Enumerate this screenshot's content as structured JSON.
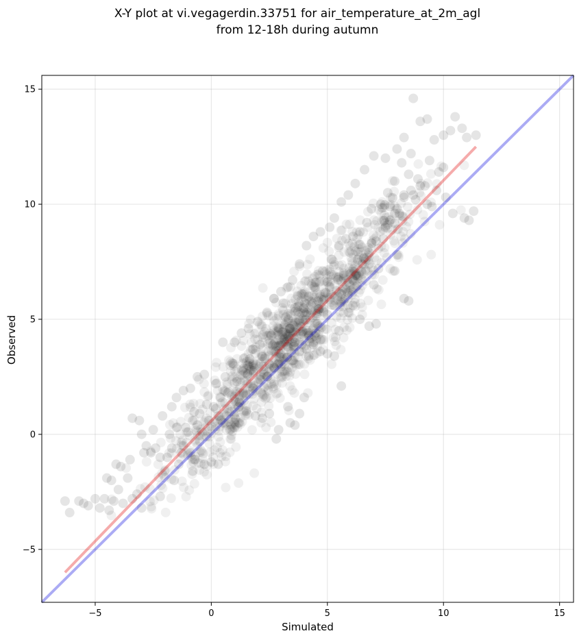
{
  "chart_data": {
    "type": "scatter",
    "title": [
      "X-Y plot at vi.vegagerdin.33751 for air_temperature_at_2m_agl",
      "from 12-18h during autumn"
    ],
    "xlabel": "Simulated",
    "ylabel": "Observed",
    "xlim": [
      -7.3,
      15.6
    ],
    "ylim": [
      -7.3,
      15.6
    ],
    "xticks": [
      -5,
      0,
      5,
      10,
      15
    ],
    "yticks": [
      -5,
      0,
      5,
      10,
      15
    ],
    "xtick_labels": [
      "−5",
      "0",
      "5",
      "10",
      "15"
    ],
    "ytick_labels": [
      "−5",
      "0",
      "5",
      "10",
      "15"
    ],
    "grid": true,
    "point_color": "#000000",
    "point_alpha": 0.1,
    "lines": [
      {
        "kind": "identity",
        "x": [
          -7.3,
          15.6
        ],
        "y": [
          -7.3,
          15.6
        ],
        "color": "#0000dd",
        "alpha": 0.33
      },
      {
        "kind": "fit",
        "x": [
          -6.3,
          11.4
        ],
        "y": [
          -6.0,
          12.5
        ],
        "color": "#e00000",
        "alpha": 0.33
      }
    ],
    "cloud_trend": {
      "slope": 1.045,
      "intercept": 0.6
    },
    "points": [
      [
        -6.3,
        -2.9
      ],
      [
        -6.1,
        -3.4
      ],
      [
        -5.7,
        -2.9
      ],
      [
        -5.5,
        -3.0
      ],
      [
        -5.3,
        -3.1
      ],
      [
        -5.0,
        -2.8
      ],
      [
        -4.8,
        -3.2
      ],
      [
        -4.6,
        -2.8
      ],
      [
        -4.4,
        -3.3
      ],
      [
        -4.2,
        -2.9
      ],
      [
        -4.0,
        -2.4
      ],
      [
        -3.8,
        -3.0
      ],
      [
        -3.6,
        -1.9
      ],
      [
        -3.4,
        -2.8
      ],
      [
        -3.2,
        -2.6
      ],
      [
        -3.0,
        -3.2
      ],
      [
        -4.5,
        -1.9
      ],
      [
        -4.3,
        -2.0
      ],
      [
        -4.1,
        -1.3
      ],
      [
        -3.9,
        -1.4
      ],
      [
        -3.5,
        -1.1
      ],
      [
        -3.4,
        0.7
      ],
      [
        -3.1,
        0.6
      ],
      [
        -3.0,
        0.0
      ],
      [
        -2.8,
        -0.5
      ],
      [
        -2.6,
        -0.8
      ],
      [
        -2.4,
        -0.6
      ],
      [
        -2.2,
        -1.0
      ],
      [
        -2.0,
        -1.6
      ],
      [
        -1.9,
        -1.0
      ],
      [
        -1.8,
        0.0
      ],
      [
        -1.7,
        -0.6
      ],
      [
        -1.6,
        -2.0
      ],
      [
        -1.5,
        0.3
      ],
      [
        -1.4,
        -1.3
      ],
      [
        -1.3,
        -0.8
      ],
      [
        -1.2,
        -0.5
      ],
      [
        -1.1,
        0.3
      ],
      [
        -1.0,
        0.1
      ],
      [
        -0.9,
        -0.8
      ],
      [
        -0.8,
        -1.6
      ],
      [
        -0.7,
        -1.1
      ],
      [
        -0.6,
        0.4
      ],
      [
        -0.5,
        -0.3
      ],
      [
        -0.4,
        0.1
      ],
      [
        -0.3,
        -1.3
      ],
      [
        -0.2,
        -0.1
      ],
      [
        -0.1,
        0.6
      ],
      [
        0.0,
        -1.2
      ],
      [
        0.3,
        -1.3
      ],
      [
        -2.2,
        -2.7
      ],
      [
        -2.9,
        -0.8
      ],
      [
        -2.5,
        0.2
      ],
      [
        -2.1,
        0.8
      ],
      [
        -1.7,
        1.2
      ],
      [
        -1.5,
        1.6
      ],
      [
        -1.2,
        1.9
      ],
      [
        -0.9,
        2.0
      ],
      [
        -0.6,
        2.5
      ],
      [
        -0.3,
        2.6
      ],
      [
        0.2,
        2.2
      ],
      [
        0.6,
        2.5
      ],
      [
        0.5,
        4.0
      ],
      [
        1.0,
        4.0
      ],
      [
        1.3,
        4.4
      ],
      [
        1.6,
        4.6
      ],
      [
        2.0,
        4.9
      ],
      [
        2.4,
        5.3
      ],
      [
        2.7,
        5.9
      ],
      [
        3.0,
        6.2
      ],
      [
        3.3,
        6.4
      ],
      [
        3.1,
        5.7
      ],
      [
        3.5,
        6.7
      ],
      [
        3.8,
        7.4
      ],
      [
        4.1,
        8.2
      ],
      [
        4.4,
        8.6
      ],
      [
        4.7,
        8.8
      ],
      [
        5.1,
        9.0
      ],
      [
        5.3,
        9.4
      ],
      [
        5.6,
        10.1
      ],
      [
        5.9,
        10.4
      ],
      [
        6.2,
        10.9
      ],
      [
        6.6,
        11.5
      ],
      [
        7.0,
        12.1
      ],
      [
        7.5,
        12.0
      ],
      [
        8.0,
        12.4
      ],
      [
        8.3,
        12.9
      ],
      [
        8.7,
        14.6
      ],
      [
        9.0,
        13.6
      ],
      [
        9.3,
        13.7
      ],
      [
        9.6,
        12.8
      ],
      [
        10.0,
        13.0
      ],
      [
        10.3,
        13.2
      ],
      [
        10.5,
        13.8
      ],
      [
        10.8,
        13.3
      ],
      [
        11.0,
        12.9
      ],
      [
        11.4,
        13.0
      ],
      [
        10.9,
        9.4
      ],
      [
        11.1,
        9.3
      ],
      [
        11.3,
        9.7
      ],
      [
        10.4,
        9.6
      ],
      [
        10.1,
        10.3
      ],
      [
        9.7,
        10.6
      ],
      [
        9.5,
        9.9
      ],
      [
        9.3,
        10.0
      ],
      [
        9.0,
        10.8
      ],
      [
        8.8,
        10.2
      ],
      [
        8.5,
        11.3
      ],
      [
        8.3,
        10.4
      ],
      [
        7.9,
        9.6
      ],
      [
        7.7,
        9.9
      ],
      [
        7.4,
        8.5
      ],
      [
        7.2,
        7.2
      ],
      [
        7.0,
        6.5
      ],
      [
        7.9,
        7.1
      ],
      [
        8.0,
        7.8
      ],
      [
        8.3,
        5.9
      ],
      [
        8.5,
        5.8
      ],
      [
        7.1,
        4.8
      ],
      [
        6.8,
        4.7
      ],
      [
        6.4,
        5.0
      ],
      [
        6.1,
        5.6
      ],
      [
        5.9,
        5.3
      ],
      [
        5.5,
        4.5
      ],
      [
        5.6,
        2.1
      ],
      [
        5.3,
        3.4
      ],
      [
        5.0,
        3.5
      ],
      [
        4.7,
        3.6
      ],
      [
        4.4,
        3.9
      ],
      [
        4.2,
        3.4
      ],
      [
        4.0,
        1.6
      ],
      [
        3.8,
        0.9
      ],
      [
        3.6,
        0.4
      ],
      [
        3.4,
        0.5
      ],
      [
        3.3,
        1.2
      ],
      [
        2.9,
        0.2
      ],
      [
        2.8,
        -0.2
      ],
      [
        2.5,
        0.9
      ],
      [
        2.2,
        0.7
      ],
      [
        1.9,
        0.8
      ],
      [
        1.5,
        1.0
      ],
      [
        1.2,
        0.5
      ],
      [
        1.0,
        0.3
      ],
      [
        0.8,
        0.2
      ],
      [
        0.5,
        0.5
      ],
      [
        0.3,
        0.8
      ],
      [
        0.1,
        1.2
      ],
      [
        0.7,
        1.8
      ],
      [
        0.9,
        3.1
      ],
      [
        1.4,
        3.3
      ],
      [
        1.8,
        3.7
      ],
      [
        2.1,
        3.9
      ],
      [
        2.6,
        4.3
      ],
      [
        2.9,
        4.6
      ],
      [
        3.2,
        5.1
      ],
      [
        3.6,
        5.5
      ],
      [
        3.9,
        6.1
      ],
      [
        4.2,
        6.0
      ],
      [
        4.5,
        6.6
      ],
      [
        4.8,
        7.1
      ],
      [
        5.2,
        7.6
      ],
      [
        5.5,
        8.2
      ],
      [
        5.8,
        8.5
      ],
      [
        6.1,
        8.6
      ],
      [
        6.4,
        8.8
      ],
      [
        6.7,
        9.2
      ],
      [
        6.9,
        9.8
      ],
      [
        7.3,
        10.0
      ],
      [
        7.6,
        10.5
      ],
      [
        7.9,
        11.0
      ],
      [
        8.2,
        11.8
      ],
      [
        8.6,
        12.2
      ],
      [
        9.4,
        11.9
      ],
      [
        10.0,
        11.6
      ],
      [
        3.0,
        3.5
      ],
      [
        3.3,
        3.8
      ],
      [
        3.6,
        4.0
      ],
      [
        3.9,
        3.9
      ],
      [
        4.2,
        4.3
      ],
      [
        3.5,
        3.2
      ],
      [
        3.8,
        3.6
      ],
      [
        4.1,
        3.7
      ],
      [
        4.4,
        4.0
      ],
      [
        4.7,
        4.1
      ],
      [
        2.7,
        2.9
      ],
      [
        2.4,
        2.5
      ],
      [
        2.1,
        2.4
      ],
      [
        1.8,
        2.0
      ],
      [
        1.5,
        1.7
      ],
      [
        1.2,
        1.4
      ],
      [
        5.0,
        5.2
      ],
      [
        5.3,
        5.6
      ],
      [
        5.6,
        6.1
      ],
      [
        5.9,
        6.6
      ],
      [
        6.2,
        6.9
      ],
      [
        6.5,
        7.4
      ],
      [
        6.8,
        7.9
      ],
      [
        7.1,
        8.4
      ],
      [
        7.4,
        8.9
      ],
      [
        7.7,
        9.3
      ],
      [
        8.0,
        9.8
      ],
      [
        8.3,
        10.3
      ],
      [
        8.6,
        10.6
      ],
      [
        8.9,
        11.1
      ],
      [
        -0.8,
        0.6
      ],
      [
        -0.5,
        0.9
      ],
      [
        -0.2,
        1.3
      ],
      [
        0.4,
        1.6
      ],
      [
        1.1,
        2.3
      ],
      [
        1.7,
        2.8
      ],
      [
        2.3,
        3.3
      ],
      [
        2.9,
        4.1
      ],
      [
        3.4,
        4.6
      ],
      [
        4.0,
        5.3
      ],
      [
        4.6,
        5.8
      ],
      [
        5.1,
        6.4
      ],
      [
        5.7,
        7.0
      ],
      [
        6.3,
        7.6
      ],
      [
        6.9,
        8.3
      ],
      [
        7.5,
        9.0
      ],
      [
        8.1,
        9.6
      ],
      [
        8.7,
        10.4
      ],
      [
        9.2,
        10.8
      ],
      [
        9.8,
        11.4
      ]
    ]
  }
}
